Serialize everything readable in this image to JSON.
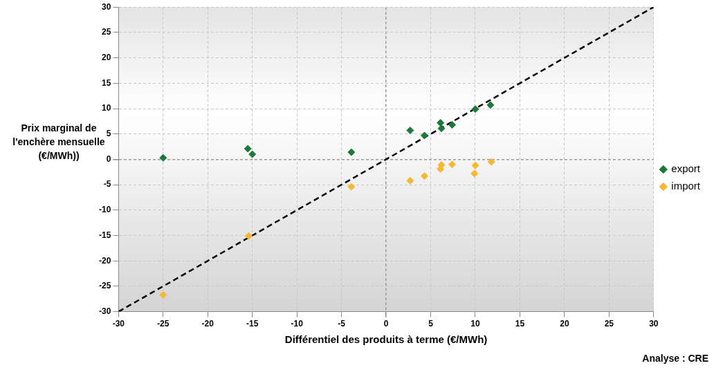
{
  "chart_data": {
    "type": "scatter",
    "xlabel": "Différentiel des produits à terme (€/MWh)",
    "ylabel": "Prix marginal de l'enchère mensuelle (€/MWh))",
    "xlim": [
      -30,
      30
    ],
    "xticks": [
      -30,
      -25,
      -20,
      -15,
      -10,
      -5,
      0,
      5,
      10,
      15,
      20,
      25,
      30
    ],
    "ylim": [
      -30,
      30
    ],
    "yticks": [
      -30,
      -25,
      -20,
      -15,
      -10,
      -5,
      0,
      5,
      10,
      15,
      20,
      25,
      30
    ],
    "grid": true,
    "legend": "right",
    "marker": "diamond",
    "series": [
      {
        "name": "export",
        "color": "#1a7a3a",
        "x": [
          -25,
          -15.5,
          -15,
          -3.9,
          2.7,
          4.3,
          6.1,
          6.2,
          7.4,
          10,
          11.7
        ],
        "values": [
          0.3,
          2.1,
          1,
          1.4,
          5.7,
          4.7,
          7.2,
          6.1,
          6.8,
          9.9,
          10.7
        ]
      },
      {
        "name": "import",
        "color": "#f5b82e",
        "x": [
          -25,
          -15.4,
          -3.9,
          2.7,
          4.3,
          6.2,
          6.1,
          7.4,
          9.9,
          10,
          11.8
        ],
        "values": [
          -26.7,
          -15.1,
          -5.4,
          -4.2,
          -3.3,
          -1.1,
          -1.9,
          -1,
          -2.8,
          -1.2,
          -0.5
        ]
      },
      {
        "type": "line",
        "color": "#000000",
        "line_style": "dashed",
        "marker": "none",
        "x": [
          -30,
          30
        ],
        "values": [
          -30,
          30
        ]
      }
    ],
    "annotations": [
      "Analyse : CRE"
    ]
  }
}
